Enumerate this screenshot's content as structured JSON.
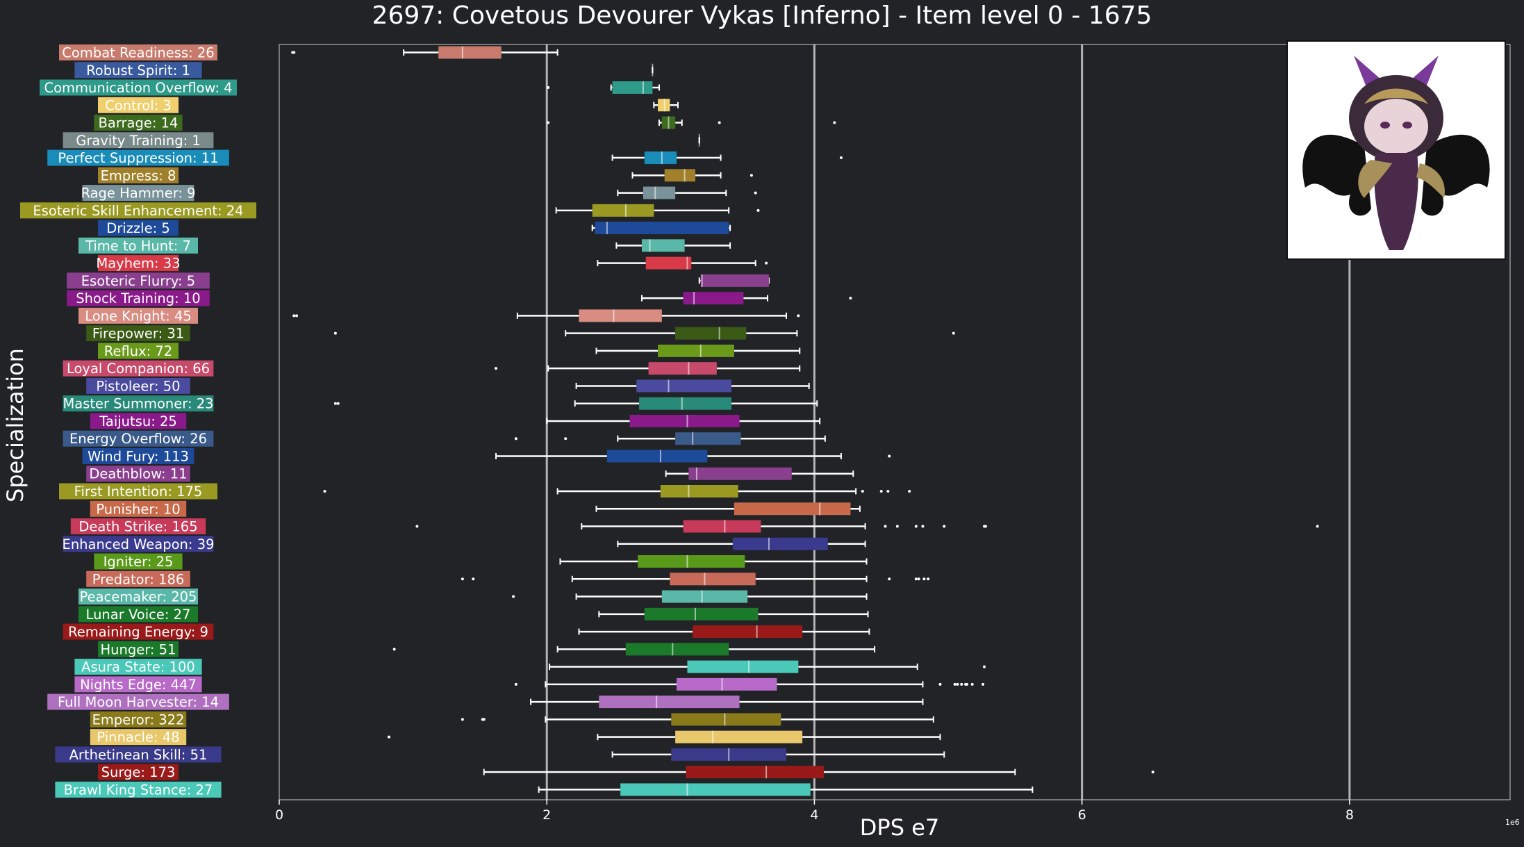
{
  "chart_data": {
    "type": "box",
    "title": "2697: Covetous Devourer Vykas [Inferno] - Item level 0 - 1675",
    "xlabel": "DPS e7",
    "ylabel": "Specialization",
    "x_scale_note": "1e6",
    "xlim": [
      0,
      9.2
    ],
    "xticks": [
      0,
      2,
      4,
      6,
      8
    ],
    "vertical_reference_lines": [
      2,
      4,
      6,
      8
    ],
    "series": [
      {
        "name": "Combat Readiness",
        "count": 26,
        "color": "#c87a6c",
        "whisker_low": 0.93,
        "q1": 1.19,
        "median": 1.37,
        "q3": 1.66,
        "whisker_high": 2.08,
        "outliers": [
          0.1,
          0.11
        ]
      },
      {
        "name": "Robust Spirit",
        "count": 1,
        "color": "#3a5a9e",
        "whisker_low": 2.79,
        "q1": 2.79,
        "median": 2.79,
        "q3": 2.79,
        "whisker_high": 2.79,
        "outliers": []
      },
      {
        "name": "Communication Overflow",
        "count": 4,
        "color": "#2e9a8a",
        "whisker_low": 2.48,
        "q1": 2.49,
        "median": 2.72,
        "q3": 2.79,
        "whisker_high": 2.84,
        "outliers": [
          2.01
        ]
      },
      {
        "name": "Control",
        "count": 3,
        "color": "#f0cf6e",
        "whisker_low": 2.8,
        "q1": 2.83,
        "median": 2.88,
        "q3": 2.92,
        "whisker_high": 2.98,
        "outliers": []
      },
      {
        "name": "Barrage",
        "count": 14,
        "color": "#3d6b1e",
        "whisker_low": 2.84,
        "q1": 2.86,
        "median": 2.91,
        "q3": 2.96,
        "whisker_high": 3.01,
        "outliers": [
          2.01,
          3.29,
          4.15
        ]
      },
      {
        "name": "Gravity Training",
        "count": 1,
        "color": "#7a8a8a",
        "whisker_low": 3.14,
        "q1": 3.14,
        "median": 3.14,
        "q3": 3.14,
        "whisker_high": 3.14,
        "outliers": []
      },
      {
        "name": "Perfect Suppression",
        "count": 11,
        "color": "#1a8cba",
        "whisker_low": 2.49,
        "q1": 2.73,
        "median": 2.86,
        "q3": 2.97,
        "whisker_high": 3.3,
        "outliers": [
          4.2
        ]
      },
      {
        "name": "Empress",
        "count": 8,
        "color": "#a0802a",
        "whisker_low": 2.64,
        "q1": 2.88,
        "median": 3.03,
        "q3": 3.11,
        "whisker_high": 3.3,
        "outliers": [
          3.53
        ]
      },
      {
        "name": "Rage Hammer",
        "count": 9,
        "color": "#7a929a",
        "whisker_low": 2.53,
        "q1": 2.72,
        "median": 2.81,
        "q3": 2.96,
        "whisker_high": 3.34,
        "outliers": [
          3.56
        ]
      },
      {
        "name": "Esoteric Skill Enhancement",
        "count": 24,
        "color": "#9a9a22",
        "whisker_low": 2.07,
        "q1": 2.34,
        "median": 2.59,
        "q3": 2.8,
        "whisker_high": 3.36,
        "outliers": [
          3.58
        ]
      },
      {
        "name": "Drizzle",
        "count": 5,
        "color": "#1e4a9a",
        "whisker_low": 2.34,
        "q1": 2.36,
        "median": 2.45,
        "q3": 3.36,
        "whisker_high": 3.37,
        "outliers": []
      },
      {
        "name": "Time to Hunt",
        "count": 7,
        "color": "#5ab8a8",
        "whisker_low": 2.52,
        "q1": 2.71,
        "median": 2.77,
        "q3": 3.03,
        "whisker_high": 3.37,
        "outliers": []
      },
      {
        "name": "Mayhem",
        "count": 33,
        "color": "#d83a48",
        "whisker_low": 2.38,
        "q1": 2.74,
        "median": 3.05,
        "q3": 3.08,
        "whisker_high": 3.56,
        "outliers": [
          3.64
        ]
      },
      {
        "name": "Esoteric Flurry",
        "count": 5,
        "color": "#8a3e8e",
        "whisker_low": 3.14,
        "q1": 3.15,
        "median": 3.16,
        "q3": 3.66,
        "whisker_high": 3.66,
        "outliers": []
      },
      {
        "name": "Shock Training",
        "count": 10,
        "color": "#8a1a8a",
        "whisker_low": 2.71,
        "q1": 3.02,
        "median": 3.1,
        "q3": 3.47,
        "whisker_high": 3.65,
        "outliers": [
          4.27
        ]
      },
      {
        "name": "Lone Knight",
        "count": 45,
        "color": "#d88c82",
        "whisker_low": 1.78,
        "q1": 2.24,
        "median": 2.5,
        "q3": 2.86,
        "whisker_high": 3.79,
        "outliers": [
          0.11,
          0.13,
          3.88
        ]
      },
      {
        "name": "Firepower",
        "count": 31,
        "color": "#3a5a16",
        "whisker_low": 2.14,
        "q1": 2.96,
        "median": 3.29,
        "q3": 3.49,
        "whisker_high": 3.87,
        "outliers": [
          0.42,
          5.04
        ]
      },
      {
        "name": "Reflux",
        "count": 72,
        "color": "#6a9a1a",
        "whisker_low": 2.37,
        "q1": 2.83,
        "median": 3.15,
        "q3": 3.4,
        "whisker_high": 3.89,
        "outliers": []
      },
      {
        "name": "Loyal Companion",
        "count": 66,
        "color": "#c84a6a",
        "whisker_low": 2.01,
        "q1": 2.76,
        "median": 3.06,
        "q3": 3.27,
        "whisker_high": 3.89,
        "outliers": [
          1.62
        ]
      },
      {
        "name": "Pistoleer",
        "count": 50,
        "color": "#4a4a9e",
        "whisker_low": 2.22,
        "q1": 2.67,
        "median": 2.91,
        "q3": 3.38,
        "whisker_high": 3.96,
        "outliers": []
      },
      {
        "name": "Master Summoner",
        "count": 23,
        "color": "#2a8a7a",
        "whisker_low": 2.21,
        "q1": 2.69,
        "median": 3.01,
        "q3": 3.38,
        "whisker_high": 4.02,
        "outliers": [
          0.42,
          0.44
        ]
      },
      {
        "name": "Taijutsu",
        "count": 25,
        "color": "#8a1a8a",
        "whisker_low": 2.0,
        "q1": 2.62,
        "median": 3.05,
        "q3": 3.44,
        "whisker_high": 4.04,
        "outliers": []
      },
      {
        "name": "Energy Overflow",
        "count": 26,
        "color": "#3a5a8a",
        "whisker_low": 2.53,
        "q1": 2.96,
        "median": 3.09,
        "q3": 3.45,
        "whisker_high": 4.08,
        "outliers": [
          1.77,
          2.14
        ]
      },
      {
        "name": "Wind Fury",
        "count": 113,
        "color": "#1e4a9a",
        "whisker_low": 1.62,
        "q1": 2.45,
        "median": 2.85,
        "q3": 3.2,
        "whisker_high": 4.2,
        "outliers": [
          4.56
        ]
      },
      {
        "name": "Deathblow",
        "count": 11,
        "color": "#8a3e8e",
        "whisker_low": 2.89,
        "q1": 3.06,
        "median": 3.12,
        "q3": 3.83,
        "whisker_high": 4.29,
        "outliers": []
      },
      {
        "name": "First Intention",
        "count": 175,
        "color": "#9a9a22",
        "whisker_low": 2.08,
        "q1": 2.85,
        "median": 3.06,
        "q3": 3.43,
        "whisker_high": 4.31,
        "outliers": [
          0.34,
          4.36,
          4.5,
          4.55,
          4.71
        ]
      },
      {
        "name": "Punisher",
        "count": 10,
        "color": "#c86a4a",
        "whisker_low": 2.37,
        "q1": 3.4,
        "median": 4.04,
        "q3": 4.27,
        "whisker_high": 4.34,
        "outliers": []
      },
      {
        "name": "Death Strike",
        "count": 165,
        "color": "#c83a5a",
        "whisker_low": 2.26,
        "q1": 3.02,
        "median": 3.33,
        "q3": 3.6,
        "whisker_high": 4.38,
        "outliers": [
          1.03,
          4.53,
          4.62,
          4.76,
          4.81,
          4.97,
          5.27,
          5.28,
          7.76
        ]
      },
      {
        "name": "Enhanced Weapon",
        "count": 39,
        "color": "#3a3a8e",
        "whisker_low": 2.53,
        "q1": 3.39,
        "median": 3.66,
        "q3": 4.1,
        "whisker_high": 4.38,
        "outliers": []
      },
      {
        "name": "Igniter",
        "count": 25,
        "color": "#5a9a1a",
        "whisker_low": 2.1,
        "q1": 2.68,
        "median": 3.05,
        "q3": 3.48,
        "whisker_high": 4.39,
        "outliers": []
      },
      {
        "name": "Predator",
        "count": 186,
        "color": "#c86a5a",
        "whisker_low": 2.19,
        "q1": 2.92,
        "median": 3.18,
        "q3": 3.56,
        "whisker_high": 4.39,
        "outliers": [
          1.37,
          1.45,
          4.56,
          4.76,
          4.78,
          4.82,
          4.85
        ]
      },
      {
        "name": "Peacemaker",
        "count": 205,
        "color": "#5ab8a8",
        "whisker_low": 2.22,
        "q1": 2.86,
        "median": 3.16,
        "q3": 3.5,
        "whisker_high": 4.39,
        "outliers": [
          1.75
        ]
      },
      {
        "name": "Lunar Voice",
        "count": 27,
        "color": "#1a7a2a",
        "whisker_low": 2.39,
        "q1": 2.73,
        "median": 3.11,
        "q3": 3.58,
        "whisker_high": 4.4,
        "outliers": []
      },
      {
        "name": "Remaining Energy",
        "count": 9,
        "color": "#9a1a1a",
        "whisker_low": 2.24,
        "q1": 3.09,
        "median": 3.57,
        "q3": 3.91,
        "whisker_high": 4.41,
        "outliers": []
      },
      {
        "name": "Hunger",
        "count": 51,
        "color": "#1a7a2a",
        "whisker_low": 2.08,
        "q1": 2.59,
        "median": 2.94,
        "q3": 3.36,
        "whisker_high": 4.45,
        "outliers": [
          0.86
        ]
      },
      {
        "name": "Asura State",
        "count": 100,
        "color": "#4ac8b8",
        "whisker_low": 2.02,
        "q1": 3.05,
        "median": 3.51,
        "q3": 3.88,
        "whisker_high": 4.77,
        "outliers": [
          5.27
        ]
      },
      {
        "name": "Nights Edge",
        "count": 447,
        "color": "#b86ac8",
        "whisker_low": 1.99,
        "q1": 2.97,
        "median": 3.31,
        "q3": 3.72,
        "whisker_high": 4.81,
        "outliers": [
          1.77,
          4.94,
          5.05,
          5.07,
          5.1,
          5.13,
          5.14,
          5.18,
          5.26
        ]
      },
      {
        "name": "Full Moon Harvester",
        "count": 14,
        "color": "#b070c0",
        "whisker_low": 1.88,
        "q1": 2.39,
        "median": 2.82,
        "q3": 3.44,
        "whisker_high": 4.81,
        "outliers": []
      },
      {
        "name": "Emperor",
        "count": 322,
        "color": "#8a7a1a",
        "whisker_low": 1.99,
        "q1": 2.93,
        "median": 3.33,
        "q3": 3.75,
        "whisker_high": 4.89,
        "outliers": [
          1.37,
          1.52,
          1.53
        ]
      },
      {
        "name": "Pinnacle",
        "count": 48,
        "color": "#e8c86a",
        "whisker_low": 2.38,
        "q1": 2.96,
        "median": 3.24,
        "q3": 3.91,
        "whisker_high": 4.94,
        "outliers": [
          0.82
        ]
      },
      {
        "name": "Arthetinean Skill",
        "count": 51,
        "color": "#3a3a8a",
        "whisker_low": 2.49,
        "q1": 2.93,
        "median": 3.36,
        "q3": 3.79,
        "whisker_high": 4.97,
        "outliers": []
      },
      {
        "name": "Surge",
        "count": 173,
        "color": "#9a1a1a",
        "whisker_low": 1.53,
        "q1": 3.04,
        "median": 3.64,
        "q3": 4.07,
        "whisker_high": 5.5,
        "outliers": [
          6.53
        ]
      },
      {
        "name": "Brawl King Stance",
        "count": 27,
        "color": "#4ac8b8",
        "whisker_low": 1.94,
        "q1": 2.55,
        "median": 3.05,
        "q3": 3.97,
        "whisker_high": 5.63,
        "outliers": []
      }
    ]
  }
}
